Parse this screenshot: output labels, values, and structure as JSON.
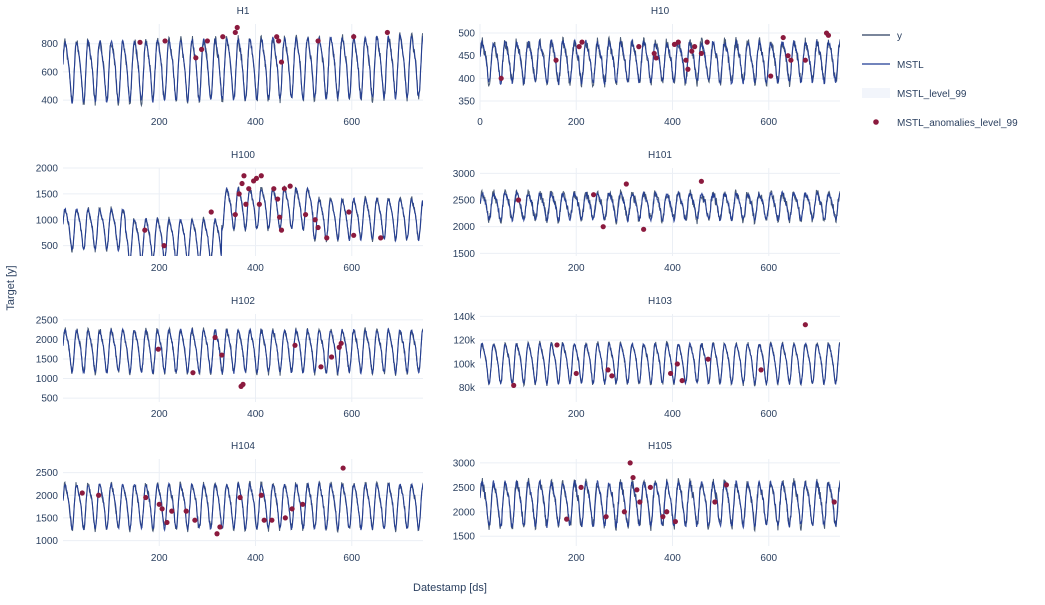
{
  "colors": {
    "y": "#2a3f5f",
    "mstl": "#1f3a93",
    "anomaly": "#8b1a3e",
    "band": "#e9eef8",
    "grid": "#ebeff5",
    "tick_text": "#2a3f5f",
    "title_text": "#2a3f5f"
  },
  "axes": {
    "x_title": "Datestamp [ds]",
    "y_title": "Target [y]"
  },
  "legend": {
    "placement": "top-right",
    "items": [
      {
        "label": "y",
        "kind": "line"
      },
      {
        "label": "MSTL",
        "kind": "line"
      },
      {
        "label": "MSTL_level_99",
        "kind": "band"
      },
      {
        "label": "MSTL_anomalies_level_99",
        "kind": "marker"
      }
    ]
  },
  "chart_data": [
    {
      "type": "line",
      "title": "H1",
      "xlim": [
        0,
        748
      ],
      "ylim": [
        330,
        940
      ],
      "xticks": [
        200,
        400,
        600
      ],
      "yticks": [
        400,
        600,
        800
      ],
      "ytick_labels": [
        "400",
        "600",
        "800"
      ],
      "grid": true,
      "series": [
        {
          "name": "y",
          "period": 24,
          "mean": 620,
          "amplitude": 220,
          "noise": 35,
          "start": 0,
          "end": 748,
          "trend": 0.05
        },
        {
          "name": "MSTL",
          "period": 24,
          "mean": 620,
          "amplitude": 220,
          "noise": 15,
          "start": 0,
          "end": 748,
          "trend": 0.05
        }
      ],
      "anomalies": [
        [
          160,
          810
        ],
        [
          212,
          820
        ],
        [
          276,
          700
        ],
        [
          288,
          760
        ],
        [
          300,
          820
        ],
        [
          332,
          850
        ],
        [
          358,
          880
        ],
        [
          362,
          915
        ],
        [
          444,
          850
        ],
        [
          448,
          820
        ],
        [
          454,
          670
        ],
        [
          530,
          820
        ],
        [
          604,
          850
        ],
        [
          674,
          880
        ]
      ]
    },
    {
      "type": "line",
      "title": "H10",
      "xlim": [
        0,
        748
      ],
      "ylim": [
        330,
        520
      ],
      "xticks": [
        0,
        200,
        400,
        600
      ],
      "yticks": [
        350,
        400,
        450,
        500
      ],
      "ytick_labels": [
        "350",
        "400",
        "450",
        "500"
      ],
      "grid": true,
      "series": [
        {
          "name": "y",
          "period": 24,
          "mean": 440,
          "amplitude": 45,
          "noise": 12,
          "start": 0,
          "end": 748,
          "trend": 0.0
        },
        {
          "name": "MSTL",
          "period": 24,
          "mean": 440,
          "amplitude": 45,
          "noise": 6,
          "start": 0,
          "end": 748,
          "trend": 0.0
        }
      ],
      "anomalies": [
        [
          44,
          400
        ],
        [
          158,
          440
        ],
        [
          206,
          470
        ],
        [
          212,
          480
        ],
        [
          330,
          470
        ],
        [
          362,
          455
        ],
        [
          366,
          445
        ],
        [
          404,
          475
        ],
        [
          412,
          480
        ],
        [
          428,
          440
        ],
        [
          432,
          420
        ],
        [
          440,
          460
        ],
        [
          446,
          470
        ],
        [
          460,
          455
        ],
        [
          472,
          480
        ],
        [
          604,
          405
        ],
        [
          630,
          490
        ],
        [
          640,
          450
        ],
        [
          646,
          440
        ],
        [
          676,
          440
        ],
        [
          720,
          500
        ],
        [
          724,
          495
        ]
      ]
    },
    {
      "type": "line",
      "title": "H100",
      "xlim": [
        0,
        748
      ],
      "ylim": [
        300,
        2000
      ],
      "xticks": [
        200,
        400,
        600
      ],
      "yticks": [
        500,
        1000,
        1500,
        2000
      ],
      "ytick_labels": [
        "500",
        "1000",
        "1500",
        "2000"
      ],
      "grid": true,
      "series": [
        {
          "name": "y",
          "period": 24,
          "mean": 900,
          "amplitude": 400,
          "noise": 60,
          "start": 0,
          "end": 748,
          "trend": 0.0,
          "regime": [
            [
              0,
              130,
              850
            ],
            [
              130,
              330,
              650
            ],
            [
              330,
              520,
              1250
            ],
            [
              520,
              748,
              1050
            ]
          ]
        },
        {
          "name": "MSTL",
          "period": 24,
          "mean": 900,
          "amplitude": 400,
          "noise": 30,
          "start": 0,
          "end": 748,
          "trend": 0.0,
          "regime": [
            [
              0,
              130,
              850
            ],
            [
              130,
              330,
              650
            ],
            [
              330,
              520,
              1250
            ],
            [
              520,
              748,
              1050
            ]
          ]
        }
      ],
      "anomalies": [
        [
          170,
          800
        ],
        [
          210,
          500
        ],
        [
          308,
          1150
        ],
        [
          358,
          1100
        ],
        [
          366,
          1500
        ],
        [
          372,
          1700
        ],
        [
          376,
          1850
        ],
        [
          380,
          1300
        ],
        [
          386,
          1600
        ],
        [
          396,
          1750
        ],
        [
          402,
          1800
        ],
        [
          408,
          1300
        ],
        [
          412,
          1850
        ],
        [
          438,
          1600
        ],
        [
          446,
          1400
        ],
        [
          450,
          1050
        ],
        [
          454,
          800
        ],
        [
          460,
          1600
        ],
        [
          472,
          1650
        ],
        [
          504,
          1100
        ],
        [
          524,
          1000
        ],
        [
          530,
          850
        ],
        [
          548,
          650
        ],
        [
          594,
          1150
        ],
        [
          604,
          700
        ],
        [
          660,
          650
        ]
      ]
    },
    {
      "type": "line",
      "title": "H101",
      "xlim": [
        0,
        748
      ],
      "ylim": [
        1450,
        3100
      ],
      "xticks": [
        200,
        400,
        600
      ],
      "yticks": [
        1500,
        2000,
        2500,
        3000
      ],
      "ytick_labels": [
        "1500",
        "2000",
        "2500",
        "3000"
      ],
      "grid": true,
      "series": [
        {
          "name": "y",
          "period": 24,
          "mean": 2400,
          "amplitude": 250,
          "noise": 90,
          "start": 0,
          "end": 748,
          "trend": 0.0
        },
        {
          "name": "MSTL",
          "period": 24,
          "mean": 2400,
          "amplitude": 250,
          "noise": 40,
          "start": 0,
          "end": 748,
          "trend": 0.0
        }
      ],
      "anomalies": [
        [
          80,
          2500
        ],
        [
          236,
          2600
        ],
        [
          256,
          2000
        ],
        [
          304,
          2800
        ],
        [
          340,
          1950
        ],
        [
          460,
          2850
        ]
      ]
    },
    {
      "type": "line",
      "title": "H102",
      "xlim": [
        0,
        748
      ],
      "ylim": [
        400,
        2650
      ],
      "xticks": [
        200,
        400,
        600
      ],
      "yticks": [
        500,
        1000,
        1500,
        2000,
        2500
      ],
      "ytick_labels": [
        "500",
        "1000",
        "1500",
        "2000",
        "2500"
      ],
      "grid": true,
      "series": [
        {
          "name": "y",
          "period": 24,
          "mean": 1750,
          "amplitude": 550,
          "noise": 90,
          "start": 0,
          "end": 748,
          "trend": 0.0
        },
        {
          "name": "MSTL",
          "period": 24,
          "mean": 1750,
          "amplitude": 550,
          "noise": 40,
          "start": 0,
          "end": 748,
          "trend": 0.0
        }
      ],
      "anomalies": [
        [
          198,
          1750
        ],
        [
          270,
          1150
        ],
        [
          316,
          2050
        ],
        [
          330,
          1600
        ],
        [
          370,
          800
        ],
        [
          374,
          850
        ],
        [
          482,
          1850
        ],
        [
          536,
          1300
        ],
        [
          558,
          1550
        ],
        [
          574,
          1800
        ],
        [
          578,
          1900
        ]
      ]
    },
    {
      "type": "line",
      "title": "H103",
      "xlim": [
        0,
        748
      ],
      "ylim": [
        68000,
        142000
      ],
      "xticks": [
        200,
        400,
        600
      ],
      "yticks": [
        80000,
        100000,
        120000,
        140000
      ],
      "ytick_labels": [
        "80k",
        "100k",
        "120k",
        "140k"
      ],
      "grid": true,
      "series": [
        {
          "name": "y",
          "period": 24,
          "mean": 102000,
          "amplitude": 17000,
          "noise": 2500,
          "start": 0,
          "end": 748,
          "trend": 0.015
        },
        {
          "name": "MSTL",
          "period": 24,
          "mean": 102000,
          "amplitude": 17000,
          "noise": 1000,
          "start": 0,
          "end": 748,
          "trend": 0.015
        }
      ],
      "anomalies": [
        [
          70,
          82000
        ],
        [
          160,
          116000
        ],
        [
          200,
          92000
        ],
        [
          266,
          95000
        ],
        [
          274,
          90000
        ],
        [
          396,
          92000
        ],
        [
          410,
          100000
        ],
        [
          420,
          86000
        ],
        [
          474,
          104000
        ],
        [
          584,
          95000
        ],
        [
          676,
          133000
        ]
      ]
    },
    {
      "type": "line",
      "title": "H104",
      "xlim": [
        0,
        748
      ],
      "ylim": [
        880,
        2800
      ],
      "xticks": [
        200,
        400,
        600
      ],
      "yticks": [
        1000,
        1500,
        2000,
        2500
      ],
      "ytick_labels": [
        "1000",
        "1500",
        "2000",
        "2500"
      ],
      "grid": true,
      "series": [
        {
          "name": "y",
          "period": 24,
          "mean": 1800,
          "amplitude": 500,
          "noise": 80,
          "start": 0,
          "end": 748,
          "trend": 0.0
        },
        {
          "name": "MSTL",
          "period": 24,
          "mean": 1800,
          "amplitude": 500,
          "noise": 35,
          "start": 0,
          "end": 748,
          "trend": 0.0
        }
      ],
      "anomalies": [
        [
          40,
          2050
        ],
        [
          74,
          2000
        ],
        [
          172,
          1950
        ],
        [
          200,
          1800
        ],
        [
          206,
          1700
        ],
        [
          216,
          1400
        ],
        [
          226,
          1650
        ],
        [
          256,
          1650
        ],
        [
          274,
          1450
        ],
        [
          320,
          1150
        ],
        [
          326,
          1300
        ],
        [
          368,
          1950
        ],
        [
          412,
          2000
        ],
        [
          418,
          1450
        ],
        [
          434,
          1450
        ],
        [
          462,
          1500
        ],
        [
          476,
          1700
        ],
        [
          498,
          1800
        ],
        [
          582,
          2600
        ]
      ]
    },
    {
      "type": "line",
      "title": "H105",
      "xlim": [
        0,
        748
      ],
      "ylim": [
        1300,
        3080
      ],
      "xticks": [
        200,
        400,
        600
      ],
      "yticks": [
        1500,
        2000,
        2500,
        3000
      ],
      "ytick_labels": [
        "1500",
        "2000",
        "2500",
        "3000"
      ],
      "grid": true,
      "series": [
        {
          "name": "y",
          "period": 24,
          "mean": 2200,
          "amplitude": 450,
          "noise": 110,
          "start": 0,
          "end": 748,
          "trend": 0.0
        },
        {
          "name": "MSTL",
          "period": 24,
          "mean": 2200,
          "amplitude": 450,
          "noise": 50,
          "start": 0,
          "end": 748,
          "trend": 0.0
        }
      ],
      "anomalies": [
        [
          180,
          1850
        ],
        [
          210,
          2500
        ],
        [
          262,
          1900
        ],
        [
          300,
          2000
        ],
        [
          312,
          3000
        ],
        [
          318,
          2700
        ],
        [
          326,
          2450
        ],
        [
          332,
          2200
        ],
        [
          354,
          2500
        ],
        [
          380,
          1900
        ],
        [
          388,
          2000
        ],
        [
          406,
          1800
        ],
        [
          488,
          2200
        ],
        [
          512,
          2550
        ],
        [
          736,
          2200
        ]
      ]
    }
  ]
}
